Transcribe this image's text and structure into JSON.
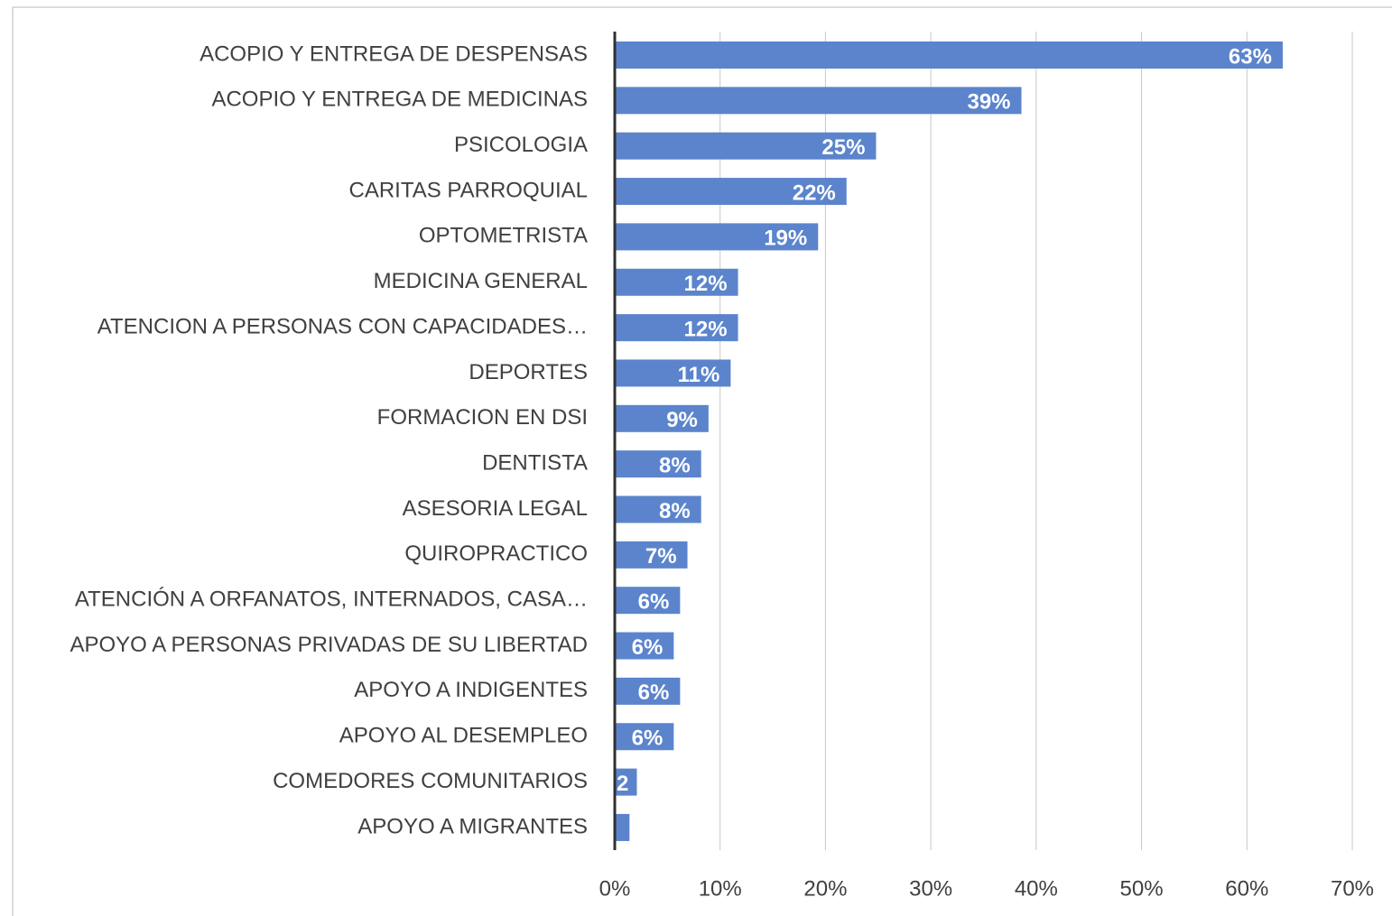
{
  "chart_data": {
    "type": "barh",
    "categories": [
      "ACOPIO Y ENTREGA DE DESPENSAS",
      "ACOPIO Y ENTREGA DE MEDICINAS",
      "PSICOLOGIA",
      "CARITAS PARROQUIAL",
      "OPTOMETRISTA",
      "MEDICINA GENERAL",
      "ATENCION  A PERSONAS CON CAPACIDADES…",
      "DEPORTES",
      "FORMACION EN DSI",
      "DENTISTA",
      "ASESORIA LEGAL",
      "QUIROPRACTICO",
      "ATENCIÓN A  ORFANATOS, INTERNADOS, CASA…",
      "APOYO A PERSONAS PRIVADAS DE SU LIBERTAD",
      "APOYO A INDIGENTES",
      "APOYO AL DESEMPLEO",
      "COMEDORES COMUNITARIOS",
      "APOYO A MIGRANTES"
    ],
    "values": [
      63.4,
      38.6,
      24.8,
      22.0,
      19.3,
      11.7,
      11.7,
      11.0,
      8.9,
      8.2,
      8.2,
      6.9,
      6.2,
      5.6,
      6.2,
      5.6,
      2.1,
      1.4
    ],
    "value_labels": [
      "63%",
      "39%",
      "25%",
      "22%",
      "19%",
      "12%",
      "12%",
      "11%",
      "9%",
      "8%",
      "8%",
      "7%",
      "6%",
      "6%",
      "6%",
      "6%",
      "2",
      null
    ],
    "color": "#5b84cc",
    "xlim": [
      0,
      70
    ],
    "xticks": [
      {
        "value": 0,
        "label": "0%"
      },
      {
        "value": 10,
        "label": "10%"
      },
      {
        "value": 20,
        "label": "20%"
      },
      {
        "value": 30,
        "label": "30%"
      },
      {
        "value": 40,
        "label": "40%"
      },
      {
        "value": 50,
        "label": "50%"
      },
      {
        "value": 60,
        "label": "60%"
      },
      {
        "value": 70,
        "label": "70%"
      }
    ],
    "grid": true
  }
}
